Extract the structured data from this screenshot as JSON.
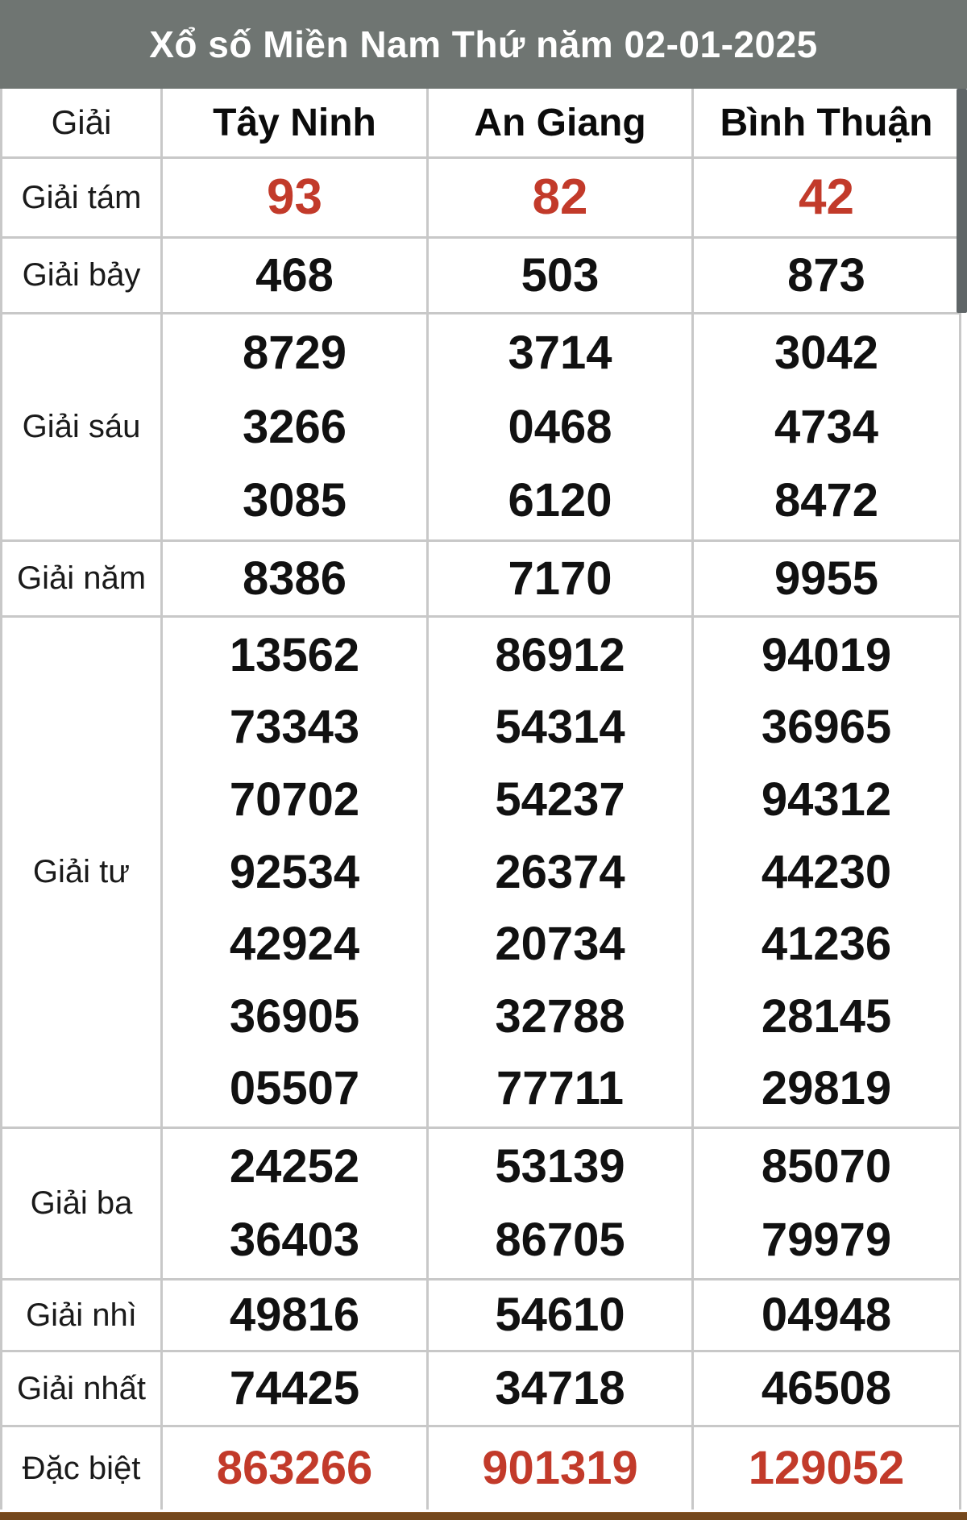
{
  "title": "Xổ số Miền Nam Thứ năm 02-01-2025",
  "colors": {
    "title_bar_bg": "#6f7572",
    "title_text": "#ffffff",
    "highlight_red": "#c23a2a",
    "number_black": "#111111",
    "grid_border": "#c8c8c8",
    "bottom_bar_brown": "#74481d",
    "scrollbar_thumb": "#5f6567"
  },
  "table": {
    "label_header": "Giải",
    "provinces": [
      "Tây Ninh",
      "An Giang",
      "Bình Thuận"
    ],
    "rows": [
      {
        "label": "Giải tám",
        "style": "red",
        "values": [
          [
            "93"
          ],
          [
            "82"
          ],
          [
            "42"
          ]
        ]
      },
      {
        "label": "Giải bảy",
        "style": "black",
        "values": [
          [
            "468"
          ],
          [
            "503"
          ],
          [
            "873"
          ]
        ]
      },
      {
        "label": "Giải sáu",
        "style": "black",
        "values": [
          [
            "8729",
            "3266",
            "3085"
          ],
          [
            "3714",
            "0468",
            "6120"
          ],
          [
            "3042",
            "4734",
            "8472"
          ]
        ]
      },
      {
        "label": "Giải năm",
        "style": "black",
        "values": [
          [
            "8386"
          ],
          [
            "7170"
          ],
          [
            "9955"
          ]
        ]
      },
      {
        "label": "Giải tư",
        "style": "black",
        "values": [
          [
            "13562",
            "73343",
            "70702",
            "92534",
            "42924",
            "36905",
            "05507"
          ],
          [
            "86912",
            "54314",
            "54237",
            "26374",
            "20734",
            "32788",
            "77711"
          ],
          [
            "94019",
            "36965",
            "94312",
            "44230",
            "41236",
            "28145",
            "29819"
          ]
        ]
      },
      {
        "label": "Giải ba",
        "style": "black",
        "values": [
          [
            "24252",
            "36403"
          ],
          [
            "53139",
            "86705"
          ],
          [
            "85070",
            "79979"
          ]
        ]
      },
      {
        "label": "Giải nhì",
        "style": "black",
        "values": [
          [
            "49816"
          ],
          [
            "54610"
          ],
          [
            "04948"
          ]
        ]
      },
      {
        "label": "Giải nhất",
        "style": "black",
        "values": [
          [
            "74425"
          ],
          [
            "34718"
          ],
          [
            "46508"
          ]
        ]
      },
      {
        "label": "Đặc biệt",
        "style": "red",
        "values": [
          [
            "863266"
          ],
          [
            "901319"
          ],
          [
            "129052"
          ]
        ]
      }
    ]
  }
}
